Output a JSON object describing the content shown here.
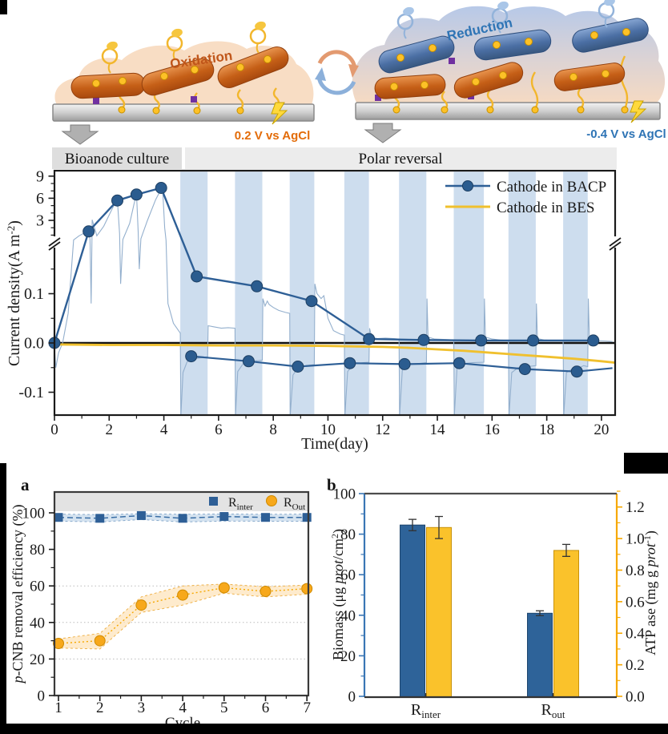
{
  "panels": {
    "a": "a",
    "b": "b"
  },
  "illustration": {
    "oxidation_label": "Oxidation",
    "reduction_label": "Reduction",
    "anode_voltage": "0.2 V vs AgCl",
    "cathode_voltage": "-0.4 V vs AgCl"
  },
  "colors": {
    "bacp": "#2e5f96",
    "bacp_marker": "#2b5c8f",
    "bes": "#f0c02e",
    "raw": "#93afcd",
    "band": "#cdddee",
    "bar_blue": "#2e6399",
    "bar_yellow": "#fac22b",
    "axis_blue": "#3a76b5",
    "axis_orange": "#f6a800",
    "r_out_orange": "#f7a81b",
    "orange_band": "#fde3b8",
    "blue_band": "#c3d7ea"
  },
  "chart_data": [
    {
      "id": "current-density-vs-time",
      "type": "line",
      "phase_labels": [
        "Bioanode culture",
        "Polar reversal"
      ],
      "xlabel": "Time(day)",
      "ylabel_parts": [
        {
          "t": "Current density(A m"
        },
        {
          "t": "-2",
          "sup": 1
        },
        {
          "t": ")"
        }
      ],
      "xlim": [
        0,
        20.5
      ],
      "xticks": [
        0,
        2,
        4,
        6,
        8,
        10,
        12,
        14,
        16,
        18,
        20
      ],
      "yticks_upper": [
        [
          3,
          "3"
        ],
        [
          6,
          "6"
        ],
        [
          9,
          "9"
        ]
      ],
      "yticks_lower": [
        [
          0.1,
          "0.1"
        ],
        [
          0,
          "0.0"
        ],
        [
          -0.1,
          "-0.1"
        ]
      ],
      "axis_break": true,
      "reversal_bands": [
        [
          4.6,
          5.6
        ],
        [
          6.6,
          7.6
        ],
        [
          8.6,
          9.5
        ],
        [
          10.6,
          11.5
        ],
        [
          12.6,
          13.6
        ],
        [
          14.6,
          15.7
        ],
        [
          16.6,
          17.6
        ],
        [
          18.6,
          19.5
        ]
      ],
      "legend": [
        {
          "label": "Cathode in BACP"
        },
        {
          "label": "Cathode in BES"
        }
      ],
      "series": {
        "bacp_upper": [
          [
            0,
            0
          ],
          [
            1.25,
            1.5
          ],
          [
            2.3,
            5.7
          ],
          [
            3.0,
            6.5
          ],
          [
            3.9,
            7.4
          ],
          [
            5.2,
            0.135
          ],
          [
            7.4,
            0.115
          ],
          [
            9.4,
            0.085
          ],
          [
            11.5,
            0.008
          ],
          [
            13.5,
            0.006
          ],
          [
            15.6,
            0.005
          ],
          [
            17.5,
            0.005
          ],
          [
            19.7,
            0.005
          ]
        ],
        "bacp_lower": [
          [
            5.0,
            -0.027
          ],
          [
            7.1,
            -0.037
          ],
          [
            8.9,
            -0.048
          ],
          [
            10.8,
            -0.041
          ],
          [
            12.8,
            -0.043
          ],
          [
            14.8,
            -0.041
          ],
          [
            17.2,
            -0.053
          ],
          [
            19.1,
            -0.058
          ],
          [
            20.4,
            -0.051
          ]
        ],
        "bes": [
          [
            0,
            -0.003
          ],
          [
            2,
            -0.004
          ],
          [
            4,
            -0.004
          ],
          [
            6,
            -0.005
          ],
          [
            8,
            -0.005
          ],
          [
            10,
            -0.006
          ],
          [
            11,
            -0.007
          ],
          [
            12,
            -0.008
          ],
          [
            13,
            -0.01
          ],
          [
            14,
            -0.013
          ],
          [
            15,
            -0.016
          ],
          [
            16,
            -0.02
          ],
          [
            17,
            -0.024
          ],
          [
            18,
            -0.028
          ],
          [
            19,
            -0.032
          ],
          [
            20,
            -0.037
          ],
          [
            20.5,
            -0.04
          ]
        ],
        "raw": [
          [
            0,
            -0.01
          ],
          [
            0.05,
            -0.05
          ],
          [
            0.15,
            -0.02
          ],
          [
            0.3,
            0
          ],
          [
            0.5,
            0.06
          ],
          [
            0.7,
            0.35
          ],
          [
            0.9,
            0.9
          ],
          [
            1.1,
            1.3
          ],
          [
            1.25,
            1.6
          ],
          [
            1.3,
            0.4
          ],
          [
            1.34,
            0.08
          ],
          [
            1.38,
            0.25
          ],
          [
            1.55,
            0.9
          ],
          [
            1.8,
            2.2
          ],
          [
            2.1,
            4.5
          ],
          [
            2.3,
            5.9
          ],
          [
            2.38,
            1.2
          ],
          [
            2.42,
            0.12
          ],
          [
            2.5,
            0.4
          ],
          [
            2.75,
            2.6
          ],
          [
            3.0,
            6.7
          ],
          [
            3.06,
            1.5
          ],
          [
            3.1,
            0.15
          ],
          [
            3.16,
            0.5
          ],
          [
            3.4,
            3.0
          ],
          [
            3.7,
            5.8
          ],
          [
            3.95,
            7.6
          ],
          [
            4.03,
            2.0
          ],
          [
            4.08,
            0.3
          ],
          [
            4.15,
            0.08
          ],
          [
            4.35,
            0.04
          ],
          [
            4.6,
            0.02
          ],
          [
            4.62,
            -0.148
          ],
          [
            4.7,
            -0.06
          ],
          [
            4.85,
            -0.038
          ],
          [
            5.1,
            -0.032
          ],
          [
            5.35,
            -0.03
          ],
          [
            5.6,
            -0.028
          ],
          [
            5.62,
            0.035
          ],
          [
            5.8,
            0.033
          ],
          [
            6.1,
            0.03
          ],
          [
            6.35,
            0.031
          ],
          [
            6.6,
            0.03
          ],
          [
            6.62,
            -0.148
          ],
          [
            6.7,
            -0.058
          ],
          [
            6.9,
            -0.042
          ],
          [
            7.2,
            -0.037
          ],
          [
            7.45,
            -0.036
          ],
          [
            7.6,
            -0.035
          ],
          [
            7.62,
            0.09
          ],
          [
            7.7,
            0.075
          ],
          [
            7.78,
            0.085
          ],
          [
            7.85,
            0.078
          ],
          [
            8.0,
            0.072
          ],
          [
            8.2,
            0.066
          ],
          [
            8.45,
            0.062
          ],
          [
            8.6,
            0.06
          ],
          [
            8.62,
            -0.148
          ],
          [
            8.72,
            -0.065
          ],
          [
            8.9,
            -0.05
          ],
          [
            9.2,
            -0.046
          ],
          [
            9.5,
            -0.044
          ],
          [
            9.52,
            0.12
          ],
          [
            9.6,
            0.1
          ],
          [
            9.75,
            0.09
          ],
          [
            9.85,
            0.096
          ],
          [
            10.0,
            0.05
          ],
          [
            10.2,
            0.025
          ],
          [
            10.45,
            0.018
          ],
          [
            10.6,
            0.016
          ],
          [
            10.62,
            -0.148
          ],
          [
            10.72,
            -0.058
          ],
          [
            10.95,
            -0.043
          ],
          [
            11.3,
            -0.04
          ],
          [
            11.5,
            -0.039
          ],
          [
            11.52,
            0.03
          ],
          [
            11.6,
            0.012
          ],
          [
            11.8,
            0.009
          ],
          [
            12.1,
            0.01
          ],
          [
            12.4,
            0.009
          ],
          [
            12.6,
            0.008
          ],
          [
            12.62,
            -0.148
          ],
          [
            12.72,
            -0.055
          ],
          [
            12.95,
            -0.044
          ],
          [
            13.3,
            -0.042
          ],
          [
            13.6,
            -0.04
          ],
          [
            13.62,
            0.09
          ],
          [
            13.66,
            0.012
          ],
          [
            13.9,
            0.008
          ],
          [
            14.3,
            0.007
          ],
          [
            14.6,
            0.006
          ],
          [
            14.62,
            -0.148
          ],
          [
            14.72,
            -0.05
          ],
          [
            14.95,
            -0.042
          ],
          [
            15.3,
            -0.04
          ],
          [
            15.7,
            -0.039
          ],
          [
            15.72,
            0.09
          ],
          [
            15.76,
            0.012
          ],
          [
            16.0,
            0.008
          ],
          [
            16.3,
            0.006
          ],
          [
            16.6,
            0.005
          ],
          [
            16.62,
            -0.148
          ],
          [
            16.72,
            -0.06
          ],
          [
            16.95,
            -0.05
          ],
          [
            17.3,
            -0.048
          ],
          [
            17.6,
            -0.046
          ],
          [
            17.62,
            0.08
          ],
          [
            17.66,
            0.009
          ],
          [
            17.9,
            0.006
          ],
          [
            18.3,
            0.005
          ],
          [
            18.6,
            0.004
          ],
          [
            18.62,
            -0.148
          ],
          [
            18.72,
            -0.06
          ],
          [
            18.95,
            -0.052
          ],
          [
            19.2,
            -0.05
          ],
          [
            19.35,
            -0.046
          ],
          [
            19.5,
            -0.048
          ],
          [
            19.52,
            0.09
          ],
          [
            19.56,
            0.008
          ],
          [
            19.8,
            0.005
          ],
          [
            20.1,
            0.004
          ],
          [
            20.4,
            0.003
          ]
        ]
      }
    },
    {
      "id": "p-cnb-removal-efficiency",
      "panel": "a",
      "type": "scatter-line",
      "xlabel": "Cycle",
      "ylabel_parts": [
        {
          "t": "p",
          "i": 1
        },
        {
          "t": "-CNB removal efficiency (%)"
        }
      ],
      "xticks": [
        1,
        2,
        3,
        4,
        5,
        6,
        7
      ],
      "yticks": [
        0,
        20,
        40,
        60,
        80,
        100
      ],
      "grid_dotted_at": [
        20,
        40,
        60
      ],
      "legend": [
        {
          "base": "R",
          "sub": "inter"
        },
        {
          "base": "R",
          "sub": "Out"
        }
      ],
      "series": {
        "r_inter": {
          "points": [
            [
              1,
              97.5
            ],
            [
              2,
              97
            ],
            [
              3,
              98.5
            ],
            [
              4,
              97
            ],
            [
              5,
              98
            ],
            [
              6,
              97.5
            ],
            [
              7,
              97.5
            ]
          ],
          "band_upper": [
            99.3,
            99,
            99.5,
            99.2,
            99.4,
            99.2,
            99.3
          ],
          "band_lower": [
            95.5,
            95,
            96.3,
            95,
            95.5,
            95.4,
            95.4
          ]
        },
        "r_out": {
          "points": [
            [
              1,
              28.5
            ],
            [
              2,
              30
            ],
            [
              3,
              49.5
            ],
            [
              4,
              55
            ],
            [
              5,
              59
            ],
            [
              6,
              57
            ],
            [
              7,
              58.5
            ]
          ],
          "band_upper": [
            31,
            34,
            54,
            60,
            61,
            59.5,
            60.5
          ],
          "band_lower": [
            26,
            25.5,
            45.5,
            49.5,
            56,
            54,
            55.5
          ]
        }
      }
    },
    {
      "id": "biomass-and-atpase",
      "panel": "b",
      "type": "bar",
      "categories": [
        {
          "base": "R",
          "sub": "inter"
        },
        {
          "base": "R",
          "sub": "out"
        }
      ],
      "left_axis": {
        "label_parts": [
          {
            "t": "Biomass (μg "
          },
          {
            "t": "prot",
            "i": 1
          },
          {
            "t": "/cm"
          },
          {
            "t": "2",
            "sup": 1
          },
          {
            "t": ")"
          }
        ],
        "ticks": [
          0,
          20,
          40,
          60,
          80,
          100
        ],
        "lim": [
          0,
          100
        ]
      },
      "right_axis": {
        "label_parts": [
          {
            "t": "ATP ase (mg g "
          },
          {
            "t": "prot",
            "i": 1
          },
          {
            "t": "-1",
            "sup": 1
          },
          {
            "t": ")"
          }
        ],
        "ticks": [
          [
            0,
            "0.0"
          ],
          [
            0.2,
            "0.2"
          ],
          [
            0.4,
            "0.4"
          ],
          [
            0.6,
            "0.6"
          ],
          [
            0.8,
            "0.8"
          ],
          [
            1.0,
            "1.0"
          ],
          [
            1.2,
            "1.2"
          ]
        ],
        "lim": [
          0,
          1.3
        ]
      },
      "series": [
        {
          "name": "Biomass",
          "axis": "left",
          "values": [
            84.5,
            41
          ],
          "errors": [
            2.8,
            1.2
          ]
        },
        {
          "name": "ATP ase",
          "axis": "right",
          "values": [
            1.07,
            0.925
          ],
          "errors": [
            0.07,
            0.038
          ]
        }
      ]
    }
  ]
}
